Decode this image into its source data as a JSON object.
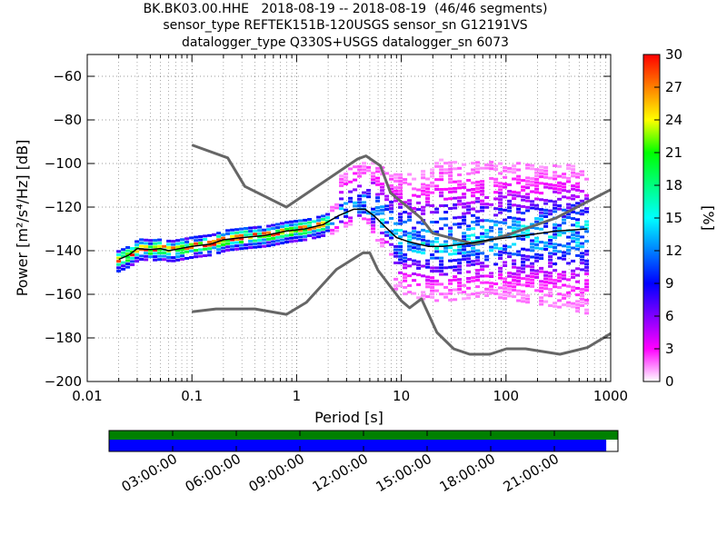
{
  "title": {
    "line1": "BK.BK03.00.HHE   2018-08-19 -- 2018-08-19  (46/46 segments)",
    "line2": "sensor_type REFTEK151B-120USGS sensor_sn G12191VS",
    "line3": "datalogger_type Q330S+USGS datalogger_sn 6073"
  },
  "chart_data": {
    "type": "heatmap",
    "xlabel": "Period [s]",
    "ylabel": "Power [m²/s⁴/Hz] [dB]",
    "xscale": "log",
    "xlim": [
      0.01,
      1000
    ],
    "ylim": [
      -200,
      -50
    ],
    "x_ticks": [
      {
        "value": 0.01,
        "label": "0.01"
      },
      {
        "value": 0.1,
        "label": "0.1"
      },
      {
        "value": 1,
        "label": "1"
      },
      {
        "value": 10,
        "label": "10"
      },
      {
        "value": 100,
        "label": "100"
      },
      {
        "value": 1000,
        "label": "1000"
      }
    ],
    "y_ticks": [
      -60,
      -80,
      -100,
      -120,
      -140,
      -160,
      -180,
      -200
    ],
    "colorbar": {
      "label": "[%]",
      "range": [
        0,
        30
      ],
      "ticks": [
        0,
        3,
        6,
        9,
        12,
        15,
        18,
        21,
        24,
        27,
        30
      ]
    },
    "noise_model_high": [
      [
        0.1,
        -91.5
      ],
      [
        0.22,
        -97.4
      ],
      [
        0.32,
        -110.5
      ],
      [
        0.8,
        -120
      ],
      [
        3.8,
        -98
      ],
      [
        4.6,
        -96.5
      ],
      [
        6.3,
        -101
      ],
      [
        7.9,
        -113.5
      ],
      [
        15.4,
        -125
      ],
      [
        20,
        -132
      ],
      [
        50,
        -137
      ],
      [
        100,
        -133
      ],
      [
        300,
        -125
      ],
      [
        1000,
        -112
      ]
    ],
    "noise_model_low": [
      [
        0.1,
        -168
      ],
      [
        0.17,
        -166.7
      ],
      [
        0.4,
        -166.7
      ],
      [
        0.8,
        -169.2
      ],
      [
        1.24,
        -163.7
      ],
      [
        2.4,
        -148.6
      ],
      [
        4.3,
        -141
      ],
      [
        5,
        -141
      ],
      [
        6,
        -149
      ],
      [
        10,
        -163
      ],
      [
        12,
        -166.2
      ],
      [
        15.6,
        -162.1
      ],
      [
        21.9,
        -177.5
      ],
      [
        31.6,
        -185
      ],
      [
        45,
        -187.5
      ],
      [
        70,
        -187.5
      ],
      [
        101,
        -185
      ],
      [
        154,
        -185
      ],
      [
        328,
        -187.5
      ],
      [
        600,
        -184.4
      ],
      [
        1000,
        -178
      ]
    ],
    "median_curve": [
      [
        0.02,
        -144
      ],
      [
        0.025,
        -142
      ],
      [
        0.03,
        -139
      ],
      [
        0.04,
        -139.5
      ],
      [
        0.05,
        -139
      ],
      [
        0.06,
        -140
      ],
      [
        0.1,
        -138
      ],
      [
        0.15,
        -137
      ],
      [
        0.2,
        -135
      ],
      [
        0.3,
        -134
      ],
      [
        0.5,
        -133
      ],
      [
        0.8,
        -131
      ],
      [
        1.2,
        -130
      ],
      [
        1.8,
        -128
      ],
      [
        2.5,
        -124
      ],
      [
        3.5,
        -121
      ],
      [
        4.5,
        -121
      ],
      [
        5.5,
        -124
      ],
      [
        7,
        -129
      ],
      [
        9,
        -134
      ],
      [
        12,
        -136
      ],
      [
        18,
        -138
      ],
      [
        25,
        -138
      ],
      [
        40,
        -137
      ],
      [
        70,
        -135
      ],
      [
        150,
        -133
      ],
      [
        300,
        -131
      ],
      [
        600,
        -130
      ]
    ],
    "time_axis": {
      "ticks": [
        "03:00:00",
        "06:00:00",
        "09:00:00",
        "12:00:00",
        "15:00:00",
        "18:00:00",
        "21:00:00"
      ],
      "data_coverage_fraction": 0.977
    },
    "colors": {
      "noise_model": "#666666",
      "median": "#000000",
      "coverage_bar": "#0000ff",
      "segment_bar": "#008000"
    }
  }
}
